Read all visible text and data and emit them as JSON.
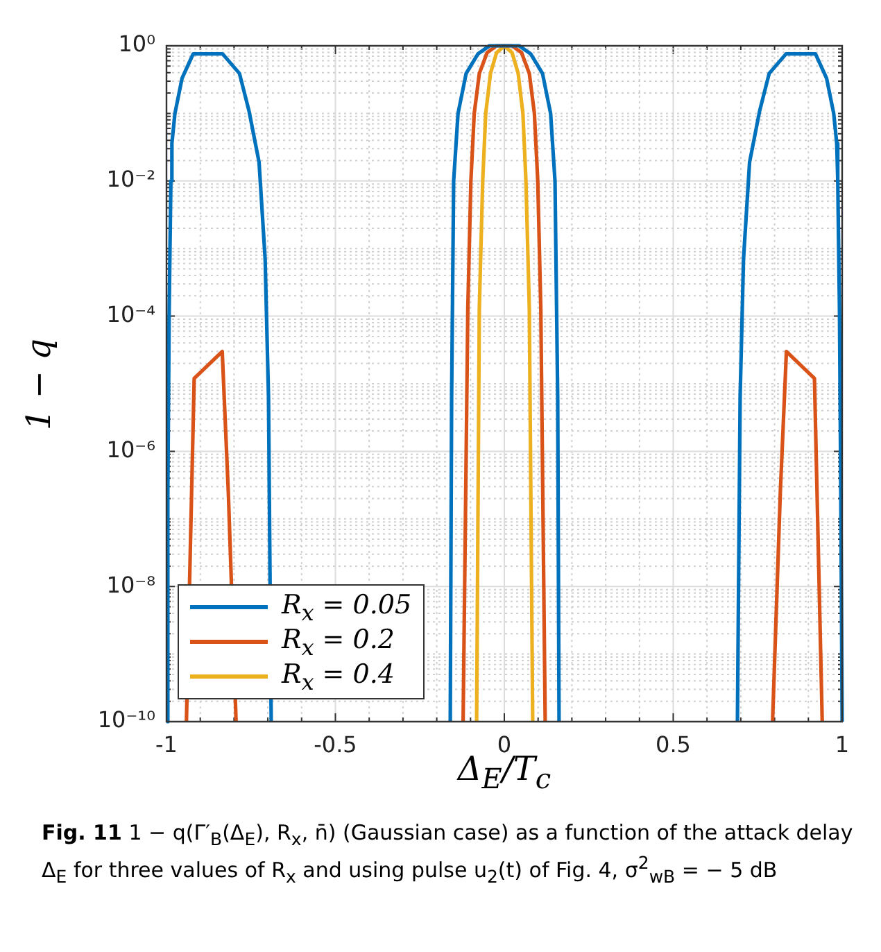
{
  "chart_data": {
    "type": "line",
    "xlabel": "Δ$_{E}$/T$_{c}$",
    "ylabel": "1 − q",
    "annotations": [
      "Fig. 11",
      "1 − q(Γ′$_{B}$(Δ$_{E}$), R$_{x}$, n̄) (Gaussian case) as a function of the attack delay Δ$_{E}$ for three values of R$_{x}$ and using pulse u$_{2}$(t) of Fig. 4, σ$^{2}$$_{wB}$ = − 5 dB"
    ],
    "log": "y",
    "grid": true,
    "legend": "bottom left",
    "marker": "none",
    "line_style": "solid",
    "xlim": [
      -1,
      1
    ],
    "xticks": [
      -1,
      {
        "value": -0.9,
        "label": null
      },
      {
        "value": -0.8,
        "label": null
      },
      {
        "value": -0.7,
        "label": null
      },
      {
        "value": -0.6,
        "label": null
      },
      -0.5,
      {
        "value": -0.4,
        "label": null
      },
      {
        "value": -0.3,
        "label": null
      },
      {
        "value": -0.2,
        "label": null
      },
      {
        "value": -0.1,
        "label": null
      },
      0,
      {
        "value": 0.1,
        "label": null
      },
      {
        "value": 0.2,
        "label": null
      },
      {
        "value": 0.3,
        "label": null
      },
      {
        "value": 0.4,
        "label": null
      },
      0.5,
      {
        "value": 0.6,
        "label": null
      },
      {
        "value": 0.7,
        "label": null
      },
      {
        "value": 0.8,
        "label": null
      },
      {
        "value": 0.9,
        "label": null
      },
      1
    ],
    "ylim": [
      1e-10,
      1
    ],
    "yticks": [
      {
        "value": 1e-10,
        "label": "10⁻¹⁰"
      },
      {
        "value": 2e-10,
        "label": null
      },
      {
        "value": 3e-10,
        "label": null
      },
      {
        "value": 4e-10,
        "label": null
      },
      {
        "value": 5e-10,
        "label": null
      },
      {
        "value": 6e-10,
        "label": null
      },
      {
        "value": 7e-10,
        "label": null
      },
      {
        "value": 8e-10,
        "label": null
      },
      {
        "value": 9e-10,
        "label": null
      },
      {
        "value": 1e-09,
        "label": null
      },
      {
        "value": 2e-09,
        "label": null
      },
      {
        "value": 3e-09,
        "label": null
      },
      {
        "value": 4e-09,
        "label": null
      },
      {
        "value": 5e-09,
        "label": null
      },
      {
        "value": 6e-09,
        "label": null
      },
      {
        "value": 7e-09,
        "label": null
      },
      {
        "value": 8e-09,
        "label": null
      },
      {
        "value": 9e-09,
        "label": null
      },
      {
        "value": 1e-08,
        "label": "10⁻⁸"
      },
      {
        "value": 2e-08,
        "label": null
      },
      {
        "value": 3e-08,
        "label": null
      },
      {
        "value": 4e-08,
        "label": null
      },
      {
        "value": 5e-08,
        "label": null
      },
      {
        "value": 6e-08,
        "label": null
      },
      {
        "value": 7e-08,
        "label": null
      },
      {
        "value": 8e-08,
        "label": null
      },
      {
        "value": 9e-08,
        "label": null
      },
      {
        "value": 1e-07,
        "label": null
      },
      {
        "value": 2e-07,
        "label": null
      },
      {
        "value": 3e-07,
        "label": null
      },
      {
        "value": 4e-07,
        "label": null
      },
      {
        "value": 5e-07,
        "label": null
      },
      {
        "value": 6e-07,
        "label": null
      },
      {
        "value": 7e-07,
        "label": null
      },
      {
        "value": 8e-07,
        "label": null
      },
      {
        "value": 9e-07,
        "label": null
      },
      {
        "value": 1e-06,
        "label": "10⁻⁶"
      },
      {
        "value": 2e-06,
        "label": null
      },
      {
        "value": 3e-06,
        "label": null
      },
      {
        "value": 4e-06,
        "label": null
      },
      {
        "value": 5e-06,
        "label": null
      },
      {
        "value": 6e-06,
        "label": null
      },
      {
        "value": 7e-06,
        "label": null
      },
      {
        "value": 8e-06,
        "label": null
      },
      {
        "value": 9e-06,
        "label": null
      },
      {
        "value": 1e-05,
        "label": null
      },
      {
        "value": 2e-05,
        "label": null
      },
      {
        "value": 3e-05,
        "label": null
      },
      {
        "value": 4e-05,
        "label": null
      },
      {
        "value": 5e-05,
        "label": null
      },
      {
        "value": 6e-05,
        "label": null
      },
      {
        "value": 7e-05,
        "label": null
      },
      {
        "value": 8e-05,
        "label": null
      },
      {
        "value": 9e-05,
        "label": null
      },
      {
        "value": 0.0001,
        "label": "10⁻⁴"
      },
      {
        "value": 0.0002,
        "label": null
      },
      {
        "value": 0.0003,
        "label": null
      },
      {
        "value": 0.0004,
        "label": null
      },
      {
        "value": 0.0005,
        "label": null
      },
      {
        "value": 0.0006,
        "label": null
      },
      {
        "value": 0.0007,
        "label": null
      },
      {
        "value": 0.0008,
        "label": null
      },
      {
        "value": 0.0009,
        "label": null
      },
      {
        "value": 0.001,
        "label": null
      },
      {
        "value": 0.002,
        "label": null
      },
      {
        "value": 0.003,
        "label": null
      },
      {
        "value": 0.004,
        "label": null
      },
      {
        "value": 0.005,
        "label": null
      },
      {
        "value": 0.006,
        "label": null
      },
      {
        "value": 0.007,
        "label": null
      },
      {
        "value": 0.008,
        "label": null
      },
      {
        "value": 0.009,
        "label": null
      },
      {
        "value": 0.01,
        "label": "10⁻²"
      },
      {
        "value": 0.02,
        "label": null
      },
      {
        "value": 0.03,
        "label": null
      },
      {
        "value": 0.04,
        "label": null
      },
      {
        "value": 0.05,
        "label": null
      },
      {
        "value": 0.06,
        "label": null
      },
      {
        "value": 0.07,
        "label": null
      },
      {
        "value": 0.08,
        "label": null
      },
      {
        "value": 0.09,
        "label": null
      },
      {
        "value": 0.1,
        "label": null
      },
      {
        "value": 0.2,
        "label": null
      },
      {
        "value": 0.3,
        "label": null
      },
      {
        "value": 0.4,
        "label": null
      },
      {
        "value": 0.5,
        "label": null
      },
      {
        "value": 0.6,
        "label": null
      },
      {
        "value": 0.7,
        "label": null
      },
      {
        "value": 0.8,
        "label": null
      },
      {
        "value": 0.9,
        "label": null
      },
      {
        "value": 1,
        "label": "10⁰"
      }
    ],
    "series": [
      {
        "name": "R$_{x}$ = 0.05",
        "color": "#0072bd",
        "x": [
          -1,
          -0.996,
          -0.992,
          -0.987,
          -0.984,
          -0.975,
          -0.954,
          -0.921,
          -0.834,
          -0.784,
          -0.756,
          -0.726,
          -0.708,
          -0.698,
          -0.69,
          -0.4,
          -0.16,
          -0.156,
          -0.15,
          -0.137,
          -0.113,
          -0.078,
          -0.044,
          0.044,
          0.078,
          0.113,
          0.137,
          0.15,
          0.158,
          0.162,
          0.4,
          0.69,
          0.698,
          0.708,
          0.726,
          0.756,
          0.784,
          0.834,
          0.921,
          0.954,
          0.975,
          0.984,
          0.987,
          0.992,
          0.996,
          1
        ],
        "values": [
          1e-10,
          2.5e-07,
          0.00013,
          0.01,
          0.036,
          0.1,
          0.33,
          0.76,
          0.76,
          0.39,
          0.11,
          0.019,
          0.0007,
          6.3e-06,
          1e-10,
          null,
          1e-10,
          6.3e-06,
          0.01,
          0.1,
          0.39,
          0.76,
          1,
          1,
          0.76,
          0.39,
          0.1,
          0.01,
          6.3e-06,
          1e-10,
          null,
          1e-10,
          6.3e-06,
          0.0007,
          0.019,
          0.11,
          0.39,
          0.76,
          0.76,
          0.33,
          0.1,
          0.036,
          0.01,
          0.00013,
          2.5e-07,
          1e-10
        ]
      },
      {
        "name": "R$_{x}$ = 0.2",
        "color": "#d95319",
        "x": [
          -0.941,
          -0.918,
          -0.835,
          -0.817,
          -0.794,
          -0.4,
          -0.122,
          -0.108,
          -0.099,
          -0.089,
          -0.074,
          -0.051,
          -0.023,
          0.023,
          0.051,
          0.074,
          0.089,
          0.099,
          0.108,
          0.121,
          0.4,
          0.794,
          0.817,
          0.835,
          0.918,
          0.941
        ],
        "values": [
          1e-10,
          1.2e-05,
          3e-05,
          2.5e-07,
          1e-10,
          null,
          1e-10,
          0.00013,
          0.01,
          0.1,
          0.39,
          0.79,
          1,
          1,
          0.79,
          0.39,
          0.1,
          0.01,
          0.00013,
          1e-10,
          null,
          1e-10,
          2.5e-07,
          3e-05,
          1.2e-05,
          1e-10
        ]
      },
      {
        "name": "R$_{x}$ = 0.4",
        "color": "#edb120",
        "x": [
          -0.082,
          -0.074,
          -0.064,
          -0.055,
          -0.041,
          -0.023,
          0,
          0.023,
          0.041,
          0.055,
          0.064,
          0.074,
          0.084
        ],
        "values": [
          1e-10,
          0.00013,
          0.01,
          0.1,
          0.39,
          0.79,
          1,
          0.79,
          0.39,
          0.1,
          0.01,
          0.00013,
          1e-10
        ]
      }
    ]
  }
}
